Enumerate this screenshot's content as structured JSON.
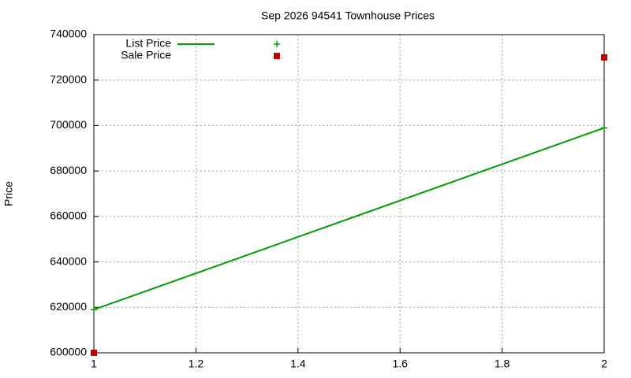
{
  "chart_data": {
    "type": "line",
    "title": "Sep 2026 94541 Townhouse Prices",
    "y_label": "Price",
    "x": [
      1,
      2
    ],
    "series": [
      {
        "name": "List Price",
        "color": "#00a000",
        "mode": "lines+points",
        "values": [
          619000,
          699000
        ]
      },
      {
        "name": "Sale Price",
        "color": "#c00000",
        "mode": "points",
        "values": [
          600000,
          730000
        ]
      }
    ],
    "xlim": [
      1,
      2
    ],
    "xticks": [
      1,
      1.2,
      1.4,
      1.6,
      1.8,
      2
    ],
    "ylim": [
      600000,
      740000
    ],
    "yticks": [
      600000,
      620000,
      640000,
      660000,
      680000,
      700000,
      720000,
      740000
    ],
    "grid": true,
    "legend": "top-left"
  }
}
